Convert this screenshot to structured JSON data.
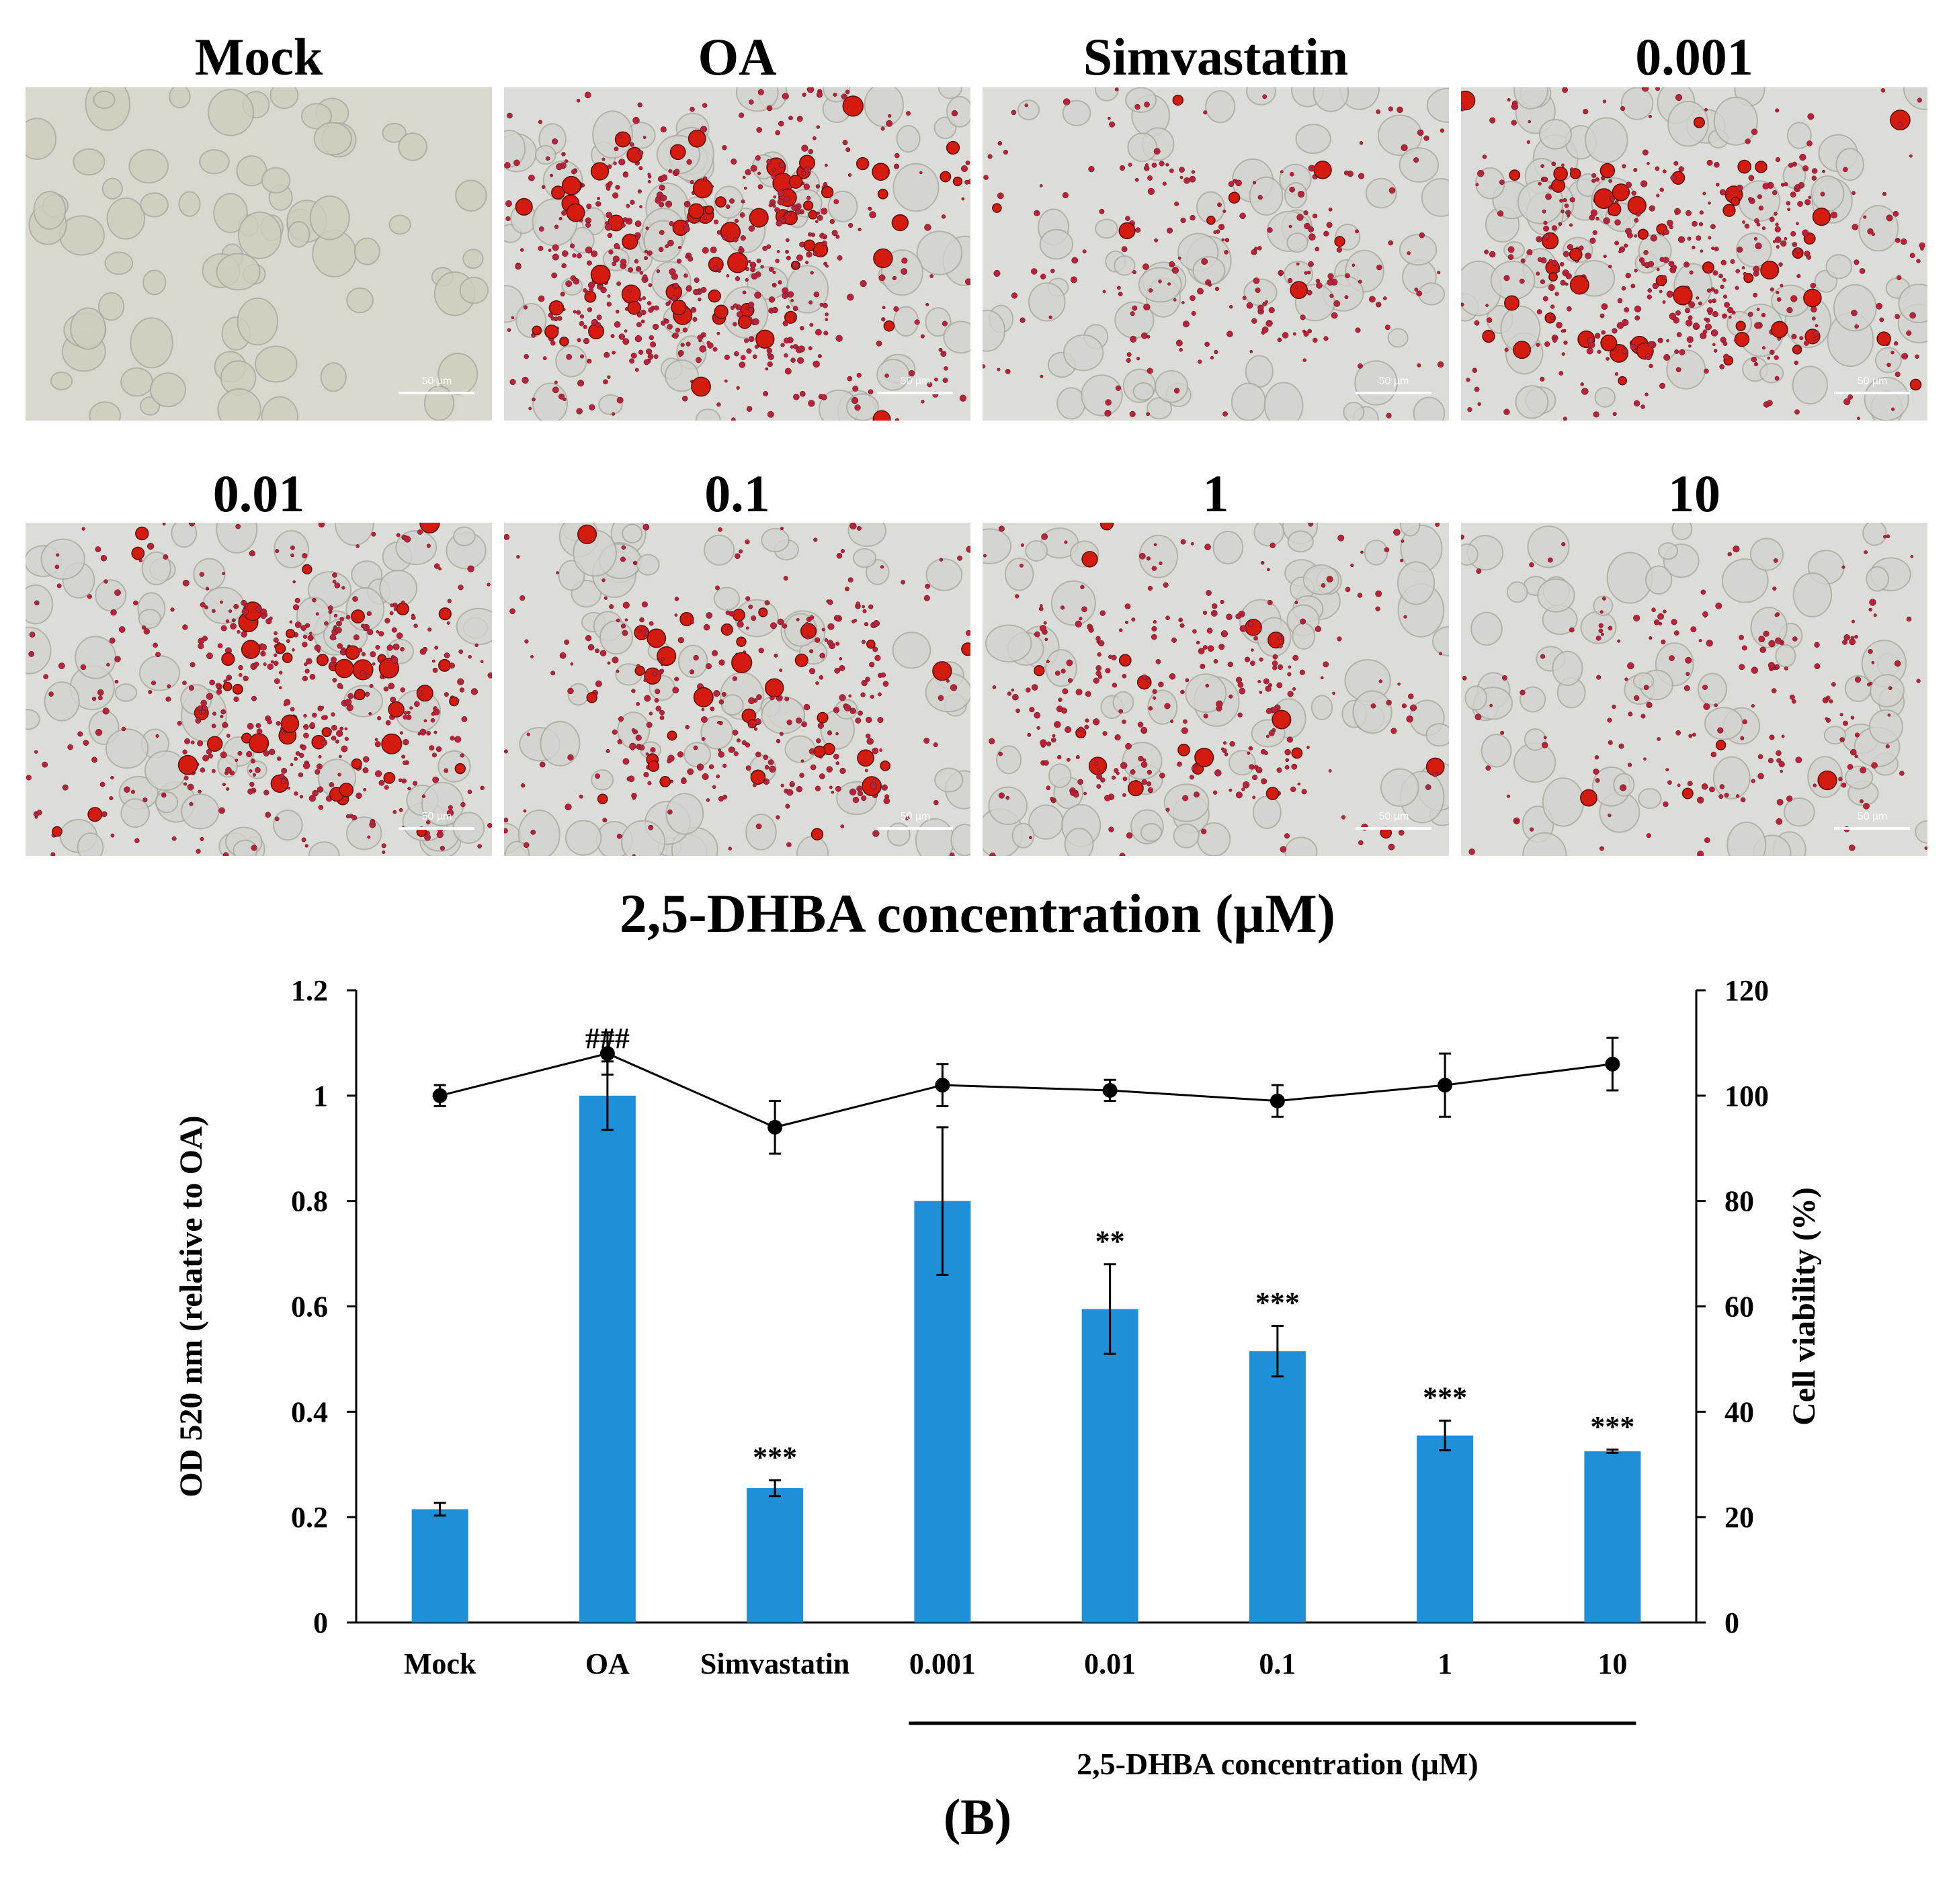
{
  "figure": {
    "micrograph_labels": [
      "Mock",
      "OA",
      "Simvastatin",
      "0.001",
      "0.01",
      "0.1",
      "1",
      "10"
    ],
    "scale_bar_text": "50 µm",
    "heading": "2,5-DHBA concentration (µM)",
    "panel_letter": "(B)"
  },
  "micrograph_stain_levels": [
    0.0,
    0.95,
    0.35,
    0.75,
    0.8,
    0.55,
    0.5,
    0.3
  ],
  "chart_data": {
    "type": "bar",
    "categories": [
      "Mock",
      "OA",
      "Simvastatin",
      "0.001",
      "0.01",
      "0.1",
      "1",
      "10"
    ],
    "group_label": "2,5-DHBA concentration (µM)",
    "group_range": [
      "0.001",
      "10"
    ],
    "ylabel": "OD 520 nm (relative to OA)",
    "ylabel_right": "Cell viability (%)",
    "ylim": [
      0,
      1.2
    ],
    "ylim_right": [
      0,
      120
    ],
    "yticks": [
      "0",
      "0.2",
      "0.4",
      "0.6",
      "0.8",
      "1",
      "1.2"
    ],
    "yticks_right": [
      "0",
      "20",
      "40",
      "60",
      "80",
      "100",
      "120"
    ],
    "bar_color": "#1f8fd8",
    "line_color": "#000000",
    "bars": {
      "values": [
        0.215,
        1.0,
        0.255,
        0.8,
        0.595,
        0.515,
        0.355,
        0.325
      ],
      "errors": [
        0.012,
        0.065,
        0.015,
        0.14,
        0.085,
        0.048,
        0.028,
        0.003
      ],
      "annotations": [
        "",
        "###",
        "***",
        "",
        "**",
        "***",
        "***",
        "***"
      ]
    },
    "viability": {
      "values": [
        100,
        108,
        94,
        102,
        101,
        99,
        102,
        106
      ],
      "errors": [
        2,
        4,
        5,
        4,
        2,
        3,
        6,
        5
      ]
    }
  }
}
